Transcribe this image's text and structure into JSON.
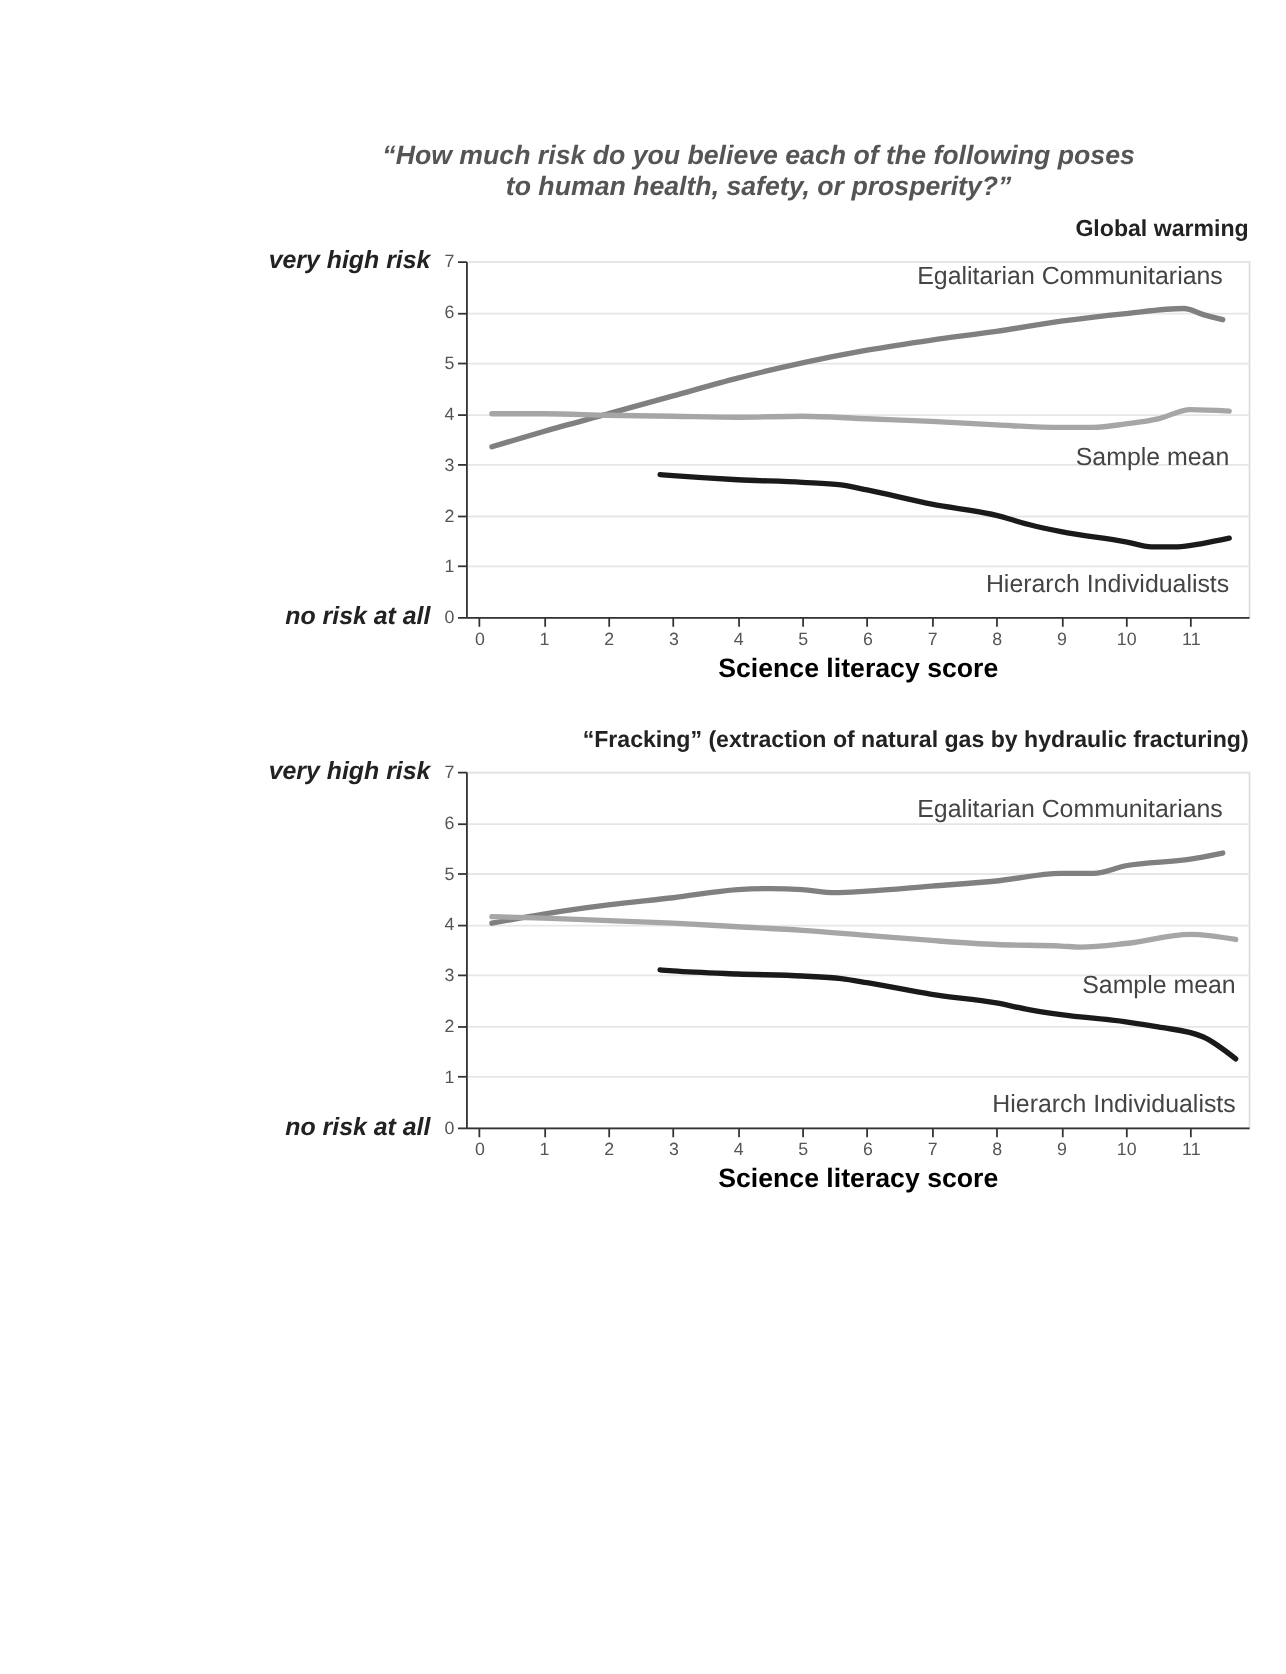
{
  "chart_data": [
    {
      "type": "line",
      "title": "“How much risk do you believe each of the following poses\nto human health, safety, or prosperity?”",
      "subtitle": "Global warming",
      "xlabel": "Science literacy score",
      "xlim": [
        -0.2,
        11.9
      ],
      "xticks": [
        0,
        1,
        2,
        3,
        4,
        5,
        6,
        7,
        8,
        9,
        10,
        11
      ],
      "ylim": [
        0,
        7
      ],
      "yticks": [
        0,
        1,
        2,
        3,
        4,
        5,
        6,
        7
      ],
      "grid": "y",
      "line_style": "solid",
      "annotations": [
        "very high risk",
        "no risk at all"
      ],
      "series": [
        {
          "name": "Egalitarian Communitarians",
          "color": "#808080",
          "x": [
            0.2,
            1,
            2,
            3,
            4,
            5,
            6,
            7,
            8,
            9,
            10,
            10.9,
            11.2,
            11.5
          ],
          "values": [
            3.35,
            3.65,
            4.0,
            4.35,
            4.7,
            5.0,
            5.25,
            5.45,
            5.62,
            5.82,
            5.97,
            6.07,
            5.95,
            5.85
          ]
        },
        {
          "name": "Sample mean",
          "color": "#a6a6a6",
          "x": [
            0.2,
            1,
            2,
            3,
            4,
            5,
            6,
            7,
            8,
            9,
            9.5,
            10,
            10.5,
            11,
            11.6
          ],
          "values": [
            4.0,
            4.0,
            3.97,
            3.95,
            3.93,
            3.95,
            3.9,
            3.85,
            3.78,
            3.73,
            3.73,
            3.8,
            3.9,
            4.08,
            4.05
          ]
        },
        {
          "name": "Hierarch Individualists",
          "color": "#1a1a1a",
          "x": [
            2.8,
            3,
            4,
            5,
            5.6,
            6,
            7,
            8,
            8.5,
            9,
            10,
            10.4,
            10.8,
            11.2,
            11.6
          ],
          "values": [
            2.8,
            2.78,
            2.7,
            2.65,
            2.6,
            2.5,
            2.22,
            2.0,
            1.82,
            1.68,
            1.48,
            1.38,
            1.38,
            1.45,
            1.55
          ]
        }
      ]
    },
    {
      "type": "line",
      "title": "“Fracking” (extraction of natural gas by hydraulic fracturing)",
      "xlabel": "Science literacy score",
      "xlim": [
        -0.2,
        11.9
      ],
      "xticks": [
        0,
        1,
        2,
        3,
        4,
        5,
        6,
        7,
        8,
        9,
        10,
        11
      ],
      "ylim": [
        0,
        7
      ],
      "yticks": [
        0,
        1,
        2,
        3,
        4,
        5,
        6,
        7
      ],
      "grid": "y",
      "line_style": "solid",
      "annotations": [
        "very high risk",
        "no risk at all"
      ],
      "series": [
        {
          "name": "Egalitarian Communitarians",
          "color": "#808080",
          "x": [
            0.2,
            1,
            2,
            3,
            4,
            4.5,
            5,
            5.5,
            6,
            7,
            8,
            9,
            9.5,
            10,
            11,
            11.5
          ],
          "values": [
            4.02,
            4.2,
            4.38,
            4.52,
            4.68,
            4.7,
            4.68,
            4.62,
            4.65,
            4.75,
            4.85,
            5.0,
            5.0,
            5.15,
            5.28,
            5.4
          ]
        },
        {
          "name": "Sample mean",
          "color": "#a6a6a6",
          "x": [
            0.2,
            1,
            2,
            3,
            4,
            5,
            6,
            7,
            8,
            9,
            9.3,
            10,
            11,
            11.7
          ],
          "values": [
            4.15,
            4.12,
            4.07,
            4.02,
            3.95,
            3.88,
            3.78,
            3.68,
            3.6,
            3.57,
            3.55,
            3.62,
            3.8,
            3.7
          ]
        },
        {
          "name": "Hierarch Individualists",
          "color": "#1a1a1a",
          "x": [
            2.8,
            3,
            4,
            5,
            5.6,
            6,
            7,
            8,
            8.5,
            9,
            10,
            10.5,
            11.2,
            11.7
          ],
          "values": [
            3.1,
            3.08,
            3.02,
            2.98,
            2.93,
            2.85,
            2.62,
            2.45,
            2.32,
            2.22,
            2.08,
            1.98,
            1.78,
            1.35
          ]
        }
      ]
    }
  ]
}
